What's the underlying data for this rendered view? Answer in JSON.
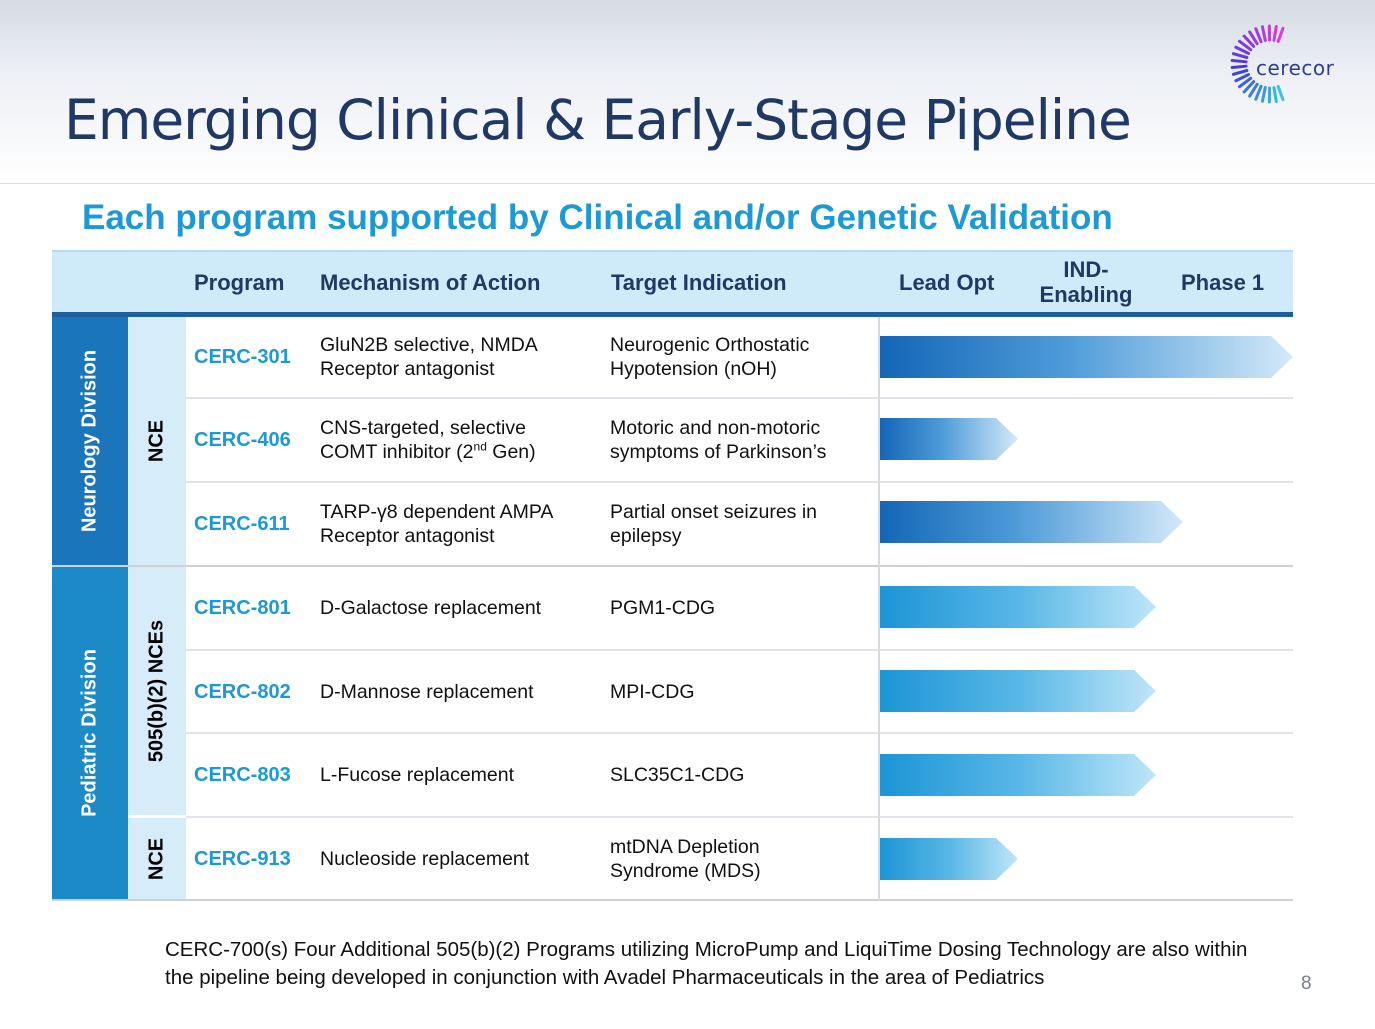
{
  "slide": {
    "title": "Emerging Clinical & Early-Stage Pipeline",
    "subtitle": "Each program supported by Clinical and/or Genetic Validation",
    "logo_text": "cerecor",
    "page_number": "8"
  },
  "table": {
    "headers": {
      "program": "Program",
      "mechanism": "Mechanism of Action",
      "indication": "Target Indication",
      "lead_opt": "Lead Opt",
      "ind_enabling_line1": "IND-",
      "ind_enabling_line2": "Enabling",
      "phase1": "Phase 1"
    },
    "divisions": {
      "neurology": "Neurology Division",
      "pediatric": "Pediatric Division"
    },
    "subgroups": {
      "nce_top": "NCE",
      "nces_505": "505(b)(2) NCEs",
      "nce_bottom": "NCE"
    },
    "rows": [
      {
        "program": "CERC-301",
        "mechanism": "GluN2B selective, NMDA\nReceptor antagonist",
        "indication": "Neurogenic Orthostatic\nHypotension (nOH)",
        "stage": "Phase 1"
      },
      {
        "program": "CERC-406",
        "mechanism_pre": "CNS-targeted, selective\nCOMT inhibitor (2",
        "mechanism_sup": "nd",
        "mechanism_post": " Gen)",
        "indication": "Motoric and non-motoric\nsymptoms of Parkinson’s",
        "stage": "Lead Opt"
      },
      {
        "program": "CERC-611",
        "mechanism": "TARP-γ8 dependent AMPA\nReceptor antagonist",
        "indication": "Partial onset seizures in\nepilepsy",
        "stage": "IND-Enabling"
      },
      {
        "program": "CERC-801",
        "mechanism": "D-Galactose replacement",
        "indication": "PGM1-CDG",
        "stage": "IND-Enabling"
      },
      {
        "program": "CERC-802",
        "mechanism": "D-Mannose replacement",
        "indication": "MPI-CDG",
        "stage": "IND-Enabling"
      },
      {
        "program": "CERC-803",
        "mechanism": "L-Fucose replacement",
        "indication": "SLC35C1-CDG",
        "stage": "IND-Enabling"
      },
      {
        "program": "CERC-913",
        "mechanism": "Nucleoside replacement",
        "indication": "mtDNA Depletion\nSyndrome (MDS)",
        "stage": "Lead Opt"
      }
    ]
  },
  "footnote": "CERC-700(s) Four Additional 505(b)(2) Programs utilizing MicroPump and LiquiTime Dosing Technology are also within the pipeline being developed in conjunction with Avadel Pharmaceuticals in the area of Pediatrics",
  "colors": {
    "title": "#1f3864",
    "accent": "#1c9ad6",
    "neurology_bar": "#1b75bb",
    "pediatric_bar": "#1d8ac8",
    "header_band": "#cfeaf8"
  }
}
